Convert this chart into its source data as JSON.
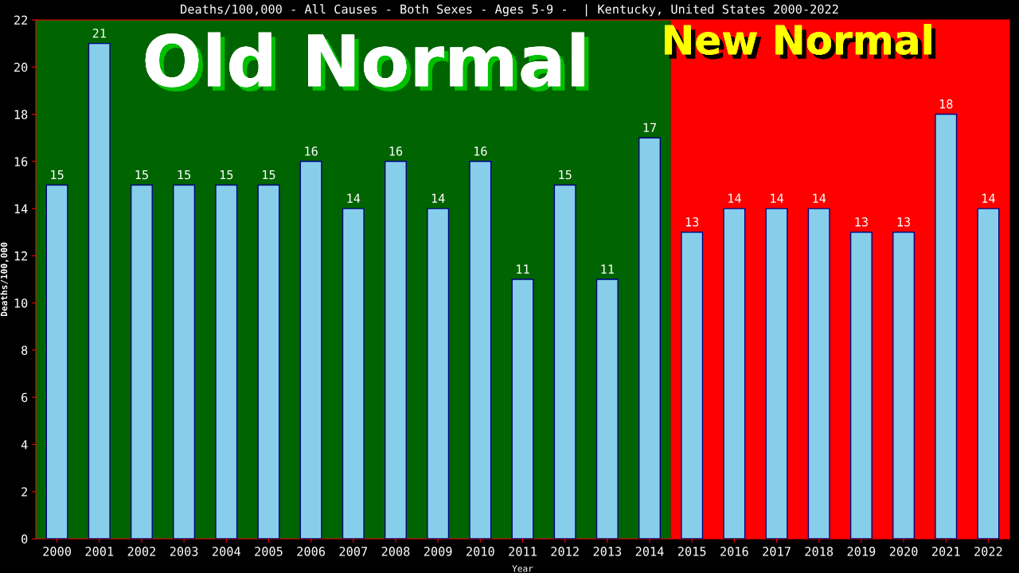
{
  "chart_data": {
    "type": "bar",
    "title": "Deaths/100,000 - All Causes - Both Sexes - Ages 5-9 -  | Kentucky, United States 2000-2022",
    "xlabel": "Year",
    "ylabel": "Deaths/100,000",
    "categories": [
      "2000",
      "2001",
      "2002",
      "2003",
      "2004",
      "2005",
      "2006",
      "2007",
      "2008",
      "2009",
      "2010",
      "2011",
      "2012",
      "2013",
      "2014",
      "2015",
      "2016",
      "2017",
      "2018",
      "2019",
      "2020",
      "2021",
      "2022"
    ],
    "values": [
      15,
      21,
      15,
      15,
      15,
      15,
      16,
      14,
      16,
      14,
      16,
      11,
      15,
      11,
      17,
      13,
      14,
      14,
      14,
      13,
      13,
      18,
      14
    ],
    "color": "#87ceeb",
    "data_labels": true,
    "ylim": [
      0,
      22
    ],
    "yticks": [
      0,
      2,
      4,
      6,
      8,
      10,
      12,
      14,
      16,
      18,
      20,
      22
    ],
    "grid": false,
    "legend": false,
    "bands": [
      {
        "axis": "x",
        "from": "2000",
        "to": "2014",
        "label": "Old Normal",
        "color": "#006400"
      },
      {
        "axis": "x",
        "from": "2015",
        "to": "2022",
        "label": "New Normal",
        "color": "#ff0000"
      }
    ]
  }
}
